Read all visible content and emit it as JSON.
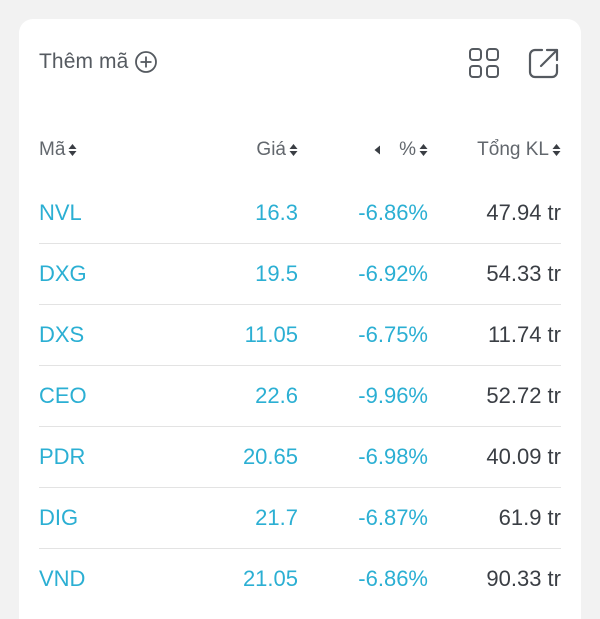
{
  "toolbar": {
    "add_code_label": "Thêm mã",
    "add_icon": "plus-circle-icon",
    "grid_icon": "grid-view-icon",
    "expand_icon": "expand-external-icon"
  },
  "table": {
    "headers": {
      "code": "Mã",
      "price": "Giá",
      "percent": "%",
      "volume": "Tổng KL"
    },
    "rows": [
      {
        "code": "NVL",
        "price": "16.3",
        "percent": "-6.86%",
        "volume": "47.94 tr"
      },
      {
        "code": "DXG",
        "price": "19.5",
        "percent": "-6.92%",
        "volume": "54.33 tr"
      },
      {
        "code": "DXS",
        "price": "11.05",
        "percent": "-6.75%",
        "volume": "11.74 tr"
      },
      {
        "code": "CEO",
        "price": "22.6",
        "percent": "-9.96%",
        "volume": "52.72 tr"
      },
      {
        "code": "PDR",
        "price": "20.65",
        "percent": "-6.98%",
        "volume": "40.09 tr"
      },
      {
        "code": "DIG",
        "price": "21.7",
        "percent": "-6.87%",
        "volume": "61.9 tr"
      },
      {
        "code": "VND",
        "price": "21.05",
        "percent": "-6.86%",
        "volume": "90.33 tr"
      }
    ]
  },
  "colors": {
    "price_color": "#2bafd3",
    "volume_color": "#3a3e44",
    "header_color": "#62676d",
    "background": "#f2f2f2"
  }
}
